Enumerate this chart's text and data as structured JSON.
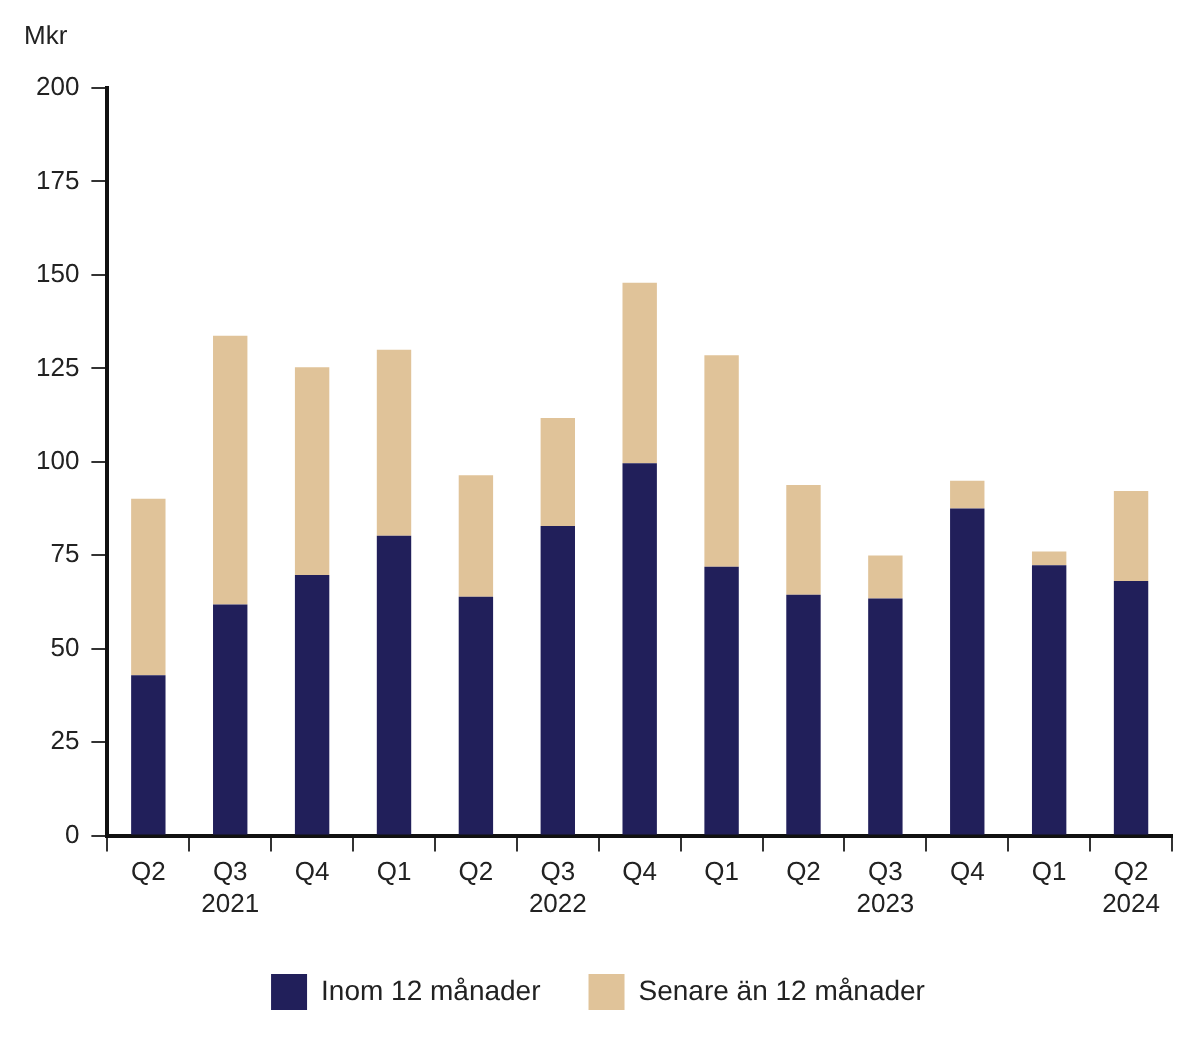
{
  "chart_data": {
    "type": "bar",
    "ylabel": "Mkr",
    "stacked": true,
    "legend": "bottom",
    "grid": false,
    "categories": [
      "Q2",
      "Q3\n2021",
      "Q4",
      "Q1",
      "Q2",
      "Q3\n2022",
      "Q4",
      "Q1",
      "Q2",
      "Q3\n2023",
      "Q4",
      "Q1",
      "Q2\n2024"
    ],
    "series": [
      {
        "name": "Inom 12 månader",
        "color": "#211f5a",
        "values": [
          42.9,
          61.8,
          69.7,
          80.2,
          63.9,
          82.8,
          99.6,
          71.9,
          64.4,
          63.4,
          87.5,
          72.3,
          68.1
        ]
      },
      {
        "name": "Senare än 12 månader",
        "color": "#e0c399",
        "values": [
          47.2,
          71.9,
          55.6,
          49.8,
          32.5,
          28.9,
          48.3,
          56.6,
          29.4,
          11.5,
          7.4,
          3.7,
          24.1
        ]
      }
    ],
    "ylim": [
      0,
      200
    ],
    "yticks": [
      0,
      25,
      50,
      75,
      100,
      125,
      150,
      175,
      200
    ]
  }
}
